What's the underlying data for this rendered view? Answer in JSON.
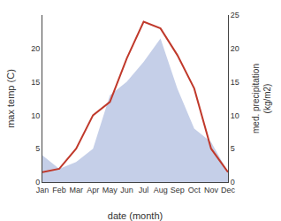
{
  "chart_data": {
    "type": "line",
    "categories": [
      "Jan",
      "Feb",
      "Mar",
      "Apr",
      "May",
      "Jun",
      "Jul",
      "Aug",
      "Sep",
      "Oct",
      "Nov",
      "Dec"
    ],
    "series": [
      {
        "type": "area",
        "color": "#c5cfe8",
        "axis": "y2",
        "values": [
          4.0,
          2.0,
          3.0,
          5.0,
          13.0,
          15.0,
          18.0,
          21.5,
          14.0,
          8.0,
          6.0,
          1.5
        ]
      },
      {
        "type": "line",
        "color": "#c0392b",
        "values": [
          1.5,
          2.0,
          5.0,
          10.0,
          12.0,
          18.5,
          24.0,
          23.0,
          19.0,
          14.0,
          5.0,
          1.5
        ]
      }
    ],
    "xlabel": "date (month)",
    "ylabel": "max temp (C)",
    "y2label": "med. precipitation\n(kg/m2)",
    "ylim": [
      0,
      25
    ],
    "yticks": [
      0,
      5,
      10,
      15,
      20
    ],
    "y2lim": [
      0,
      25
    ],
    "y2ticks": [
      0,
      5,
      10,
      15,
      20,
      25
    ],
    "grid": false
  }
}
